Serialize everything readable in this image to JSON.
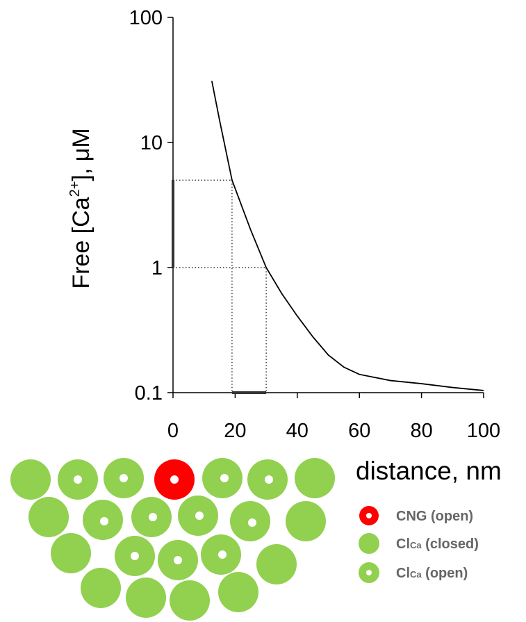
{
  "chart_data": {
    "type": "line",
    "ylabel_parts": [
      "Free [Ca",
      "2+",
      "], μM"
    ],
    "xlabel": "distance, nm",
    "x": [
      12.5,
      15,
      19,
      25,
      30,
      35,
      40,
      45,
      50,
      55,
      60,
      70,
      80,
      90,
      100
    ],
    "values": [
      31,
      15,
      5,
      2,
      1,
      0.62,
      0.41,
      0.28,
      0.2,
      0.16,
      0.14,
      0.125,
      0.118,
      0.11,
      0.104
    ],
    "color": "#000000",
    "xlim": [
      0,
      100
    ],
    "xticks": [
      0,
      20,
      40,
      60,
      80,
      100
    ],
    "ylim": [
      0.1,
      100
    ],
    "yticks": [
      0.1,
      1,
      10,
      100
    ],
    "log_y": true,
    "guides": [
      {
        "x": 19,
        "y": 5
      },
      {
        "x": 30,
        "y": 1
      }
    ]
  },
  "legend": [
    {
      "label": "CNG (open)"
    },
    {
      "label": "Cl",
      "sub": "Ca",
      "rest": " (closed)"
    },
    {
      "label": "Cl",
      "sub": "Ca",
      "rest": " (open)"
    }
  ]
}
